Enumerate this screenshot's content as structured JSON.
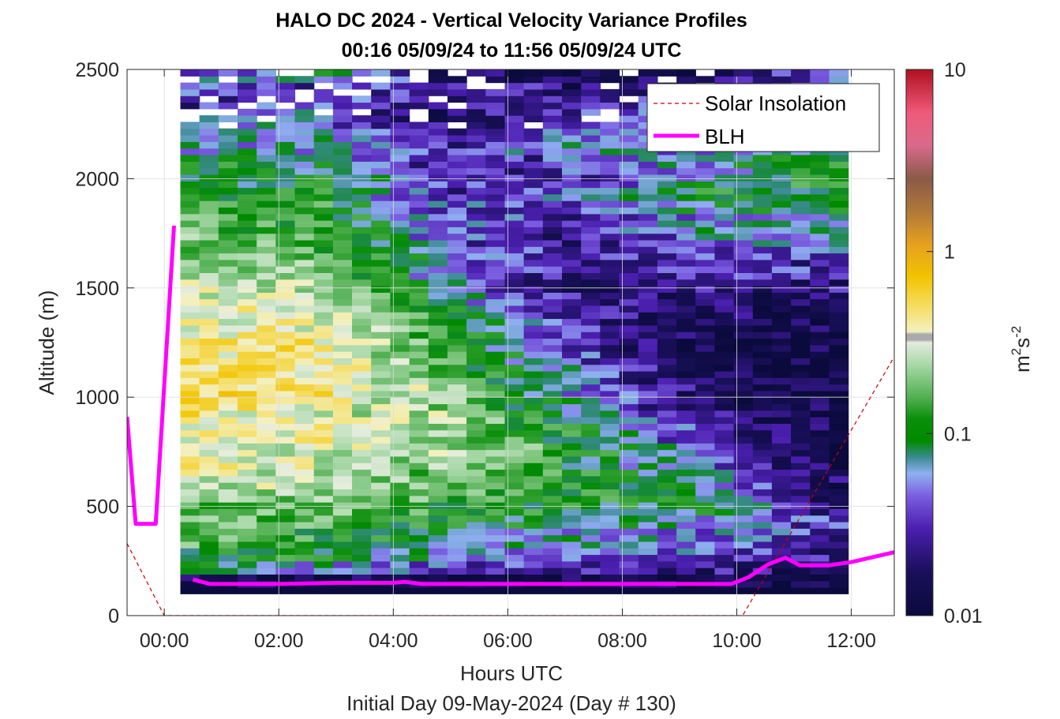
{
  "chart_data": {
    "type": "heatmap",
    "title": "HALO DC 2024 - Vertical Velocity Variance Profiles",
    "subtitle": "00:16 05/09/24 to 11:56 05/09/24  UTC",
    "xlabel": "Hours UTC",
    "xlabel2": "Initial Day 09-May-2024 (Day # 130)",
    "ylabel": "Altitude (m)",
    "xlim": [
      -0.65,
      12.75
    ],
    "ylim": [
      0,
      2500
    ],
    "xticks": [
      0,
      2,
      4,
      6,
      8,
      10,
      12
    ],
    "xticklabels": [
      "00:00",
      "02:00",
      "04:00",
      "06:00",
      "08:00",
      "10:00",
      "12:00"
    ],
    "yticks": [
      0,
      500,
      1000,
      1500,
      2000,
      2500
    ],
    "yticklabels": [
      "0",
      "500",
      "1000",
      "1500",
      "2000",
      "2500"
    ],
    "grid": true,
    "colorbar": {
      "scale": "log",
      "range": [
        0.01,
        10
      ],
      "ticks": [
        0.01,
        0.1,
        1,
        10
      ],
      "ticklabels": [
        "0.01",
        "0.1",
        "1",
        "10"
      ],
      "label_base": "m",
      "label_exp1": "2",
      "label_mid": "s",
      "label_exp2": "-2"
    },
    "legend": {
      "position": "top-right",
      "entries": [
        {
          "label": "Solar Insolation",
          "color": "#cc0000",
          "style": "dashed"
        },
        {
          "label": "BLH",
          "color": "#ff00ff",
          "style": "solid"
        }
      ]
    },
    "grid_cells": {
      "time_start": 0.28,
      "time_step": 0.3333,
      "alt_start": 100,
      "alt_step": 30,
      "profile_levels_log10": [
        [
          -1.9,
          -1.2,
          -1.1,
          -0.9,
          -0.8,
          -0.9,
          -0.7,
          -0.6,
          -0.5,
          -0.5,
          -0.5,
          -0.4,
          -0.3,
          -0.3,
          -0.3,
          -0.4,
          -0.4,
          -0.5,
          -0.5,
          -0.6,
          -0.6,
          -0.7,
          -0.8,
          -0.8,
          -0.9,
          -1.0,
          -1.0,
          -1.2,
          -1.1,
          -1.3,
          -1.4,
          -1.3,
          -1.6,
          -1.5,
          -1.5
        ],
        [
          -1.9,
          -1.3,
          -1.1,
          -1.0,
          -0.9,
          -0.8,
          -0.8,
          -0.7,
          -0.6,
          -0.6,
          -0.5,
          -0.6,
          -0.5,
          -0.4,
          -0.4,
          -0.5,
          -0.4,
          -0.5,
          -0.6,
          -0.6,
          -0.7,
          -0.8,
          -0.9,
          -0.9,
          -1.0,
          -1.0,
          -1.1,
          -1.1,
          -1.2,
          -1.3,
          -1.3,
          -1.4,
          -1.5,
          -1.6,
          -1.2
        ],
        [
          -1.9,
          -1.5,
          -1.3,
          -1.2,
          -1.1,
          -1.0,
          -0.9,
          -0.9,
          -0.8,
          -0.7,
          -0.8,
          -0.7,
          -0.8,
          -0.7,
          -0.9,
          -0.9,
          -1.0,
          -1.0,
          -1.1,
          -1.2,
          -1.3,
          -1.4,
          -1.3,
          -1.5,
          -1.4,
          -1.5,
          -1.6,
          -1.5,
          -1.7,
          -1.6,
          -1.7,
          -1.8,
          -1.7,
          -1.5,
          -1.8
        ],
        [
          -1.9,
          -1.6,
          -1.4,
          -1.3,
          -1.2,
          -1.1,
          -1.0,
          -1.0,
          -1.1,
          -1.0,
          -1.1,
          -1.2,
          -1.3,
          -1.4,
          -1.4,
          -1.5,
          -1.6,
          -1.6,
          -1.7,
          -1.7,
          -1.8,
          -1.7,
          -1.6,
          -1.7,
          -1.6,
          -1.5,
          -1.4,
          -1.6,
          -1.5,
          -1.3,
          -1.4,
          -1.6,
          -1.5,
          -1.8,
          -1.9
        ],
        [
          -1.9,
          -1.7,
          -1.5,
          -1.4,
          -1.3,
          -1.2,
          -1.2,
          -1.3,
          -1.4,
          -1.5,
          -1.6,
          -1.7,
          -1.8,
          -1.8,
          -1.9,
          -1.9,
          -1.9,
          -1.9,
          -1.8,
          -1.8,
          -1.7,
          -1.6,
          -1.5,
          -1.4,
          -1.3,
          -1.2,
          -1.1,
          -1.2,
          -1.3,
          -1.4,
          -1.5,
          -1.4,
          -1.6,
          -1.7,
          -1.8
        ],
        [
          -1.9,
          -1.8,
          -1.7,
          -1.6,
          -1.6,
          -1.7,
          -1.8,
          -1.8,
          -1.9,
          -1.9,
          -1.9,
          -1.9,
          -1.9,
          -1.9,
          -1.9,
          -1.9,
          -1.9,
          -1.9,
          -1.9,
          -1.8,
          -1.7,
          -1.6,
          -1.5,
          -1.4,
          -1.3,
          -1.2,
          -1.1,
          -1.0,
          -1.0,
          -1.1,
          -1.2,
          -1.1,
          -1.3,
          -1.2,
          -1.4
        ]
      ]
    }
  }
}
